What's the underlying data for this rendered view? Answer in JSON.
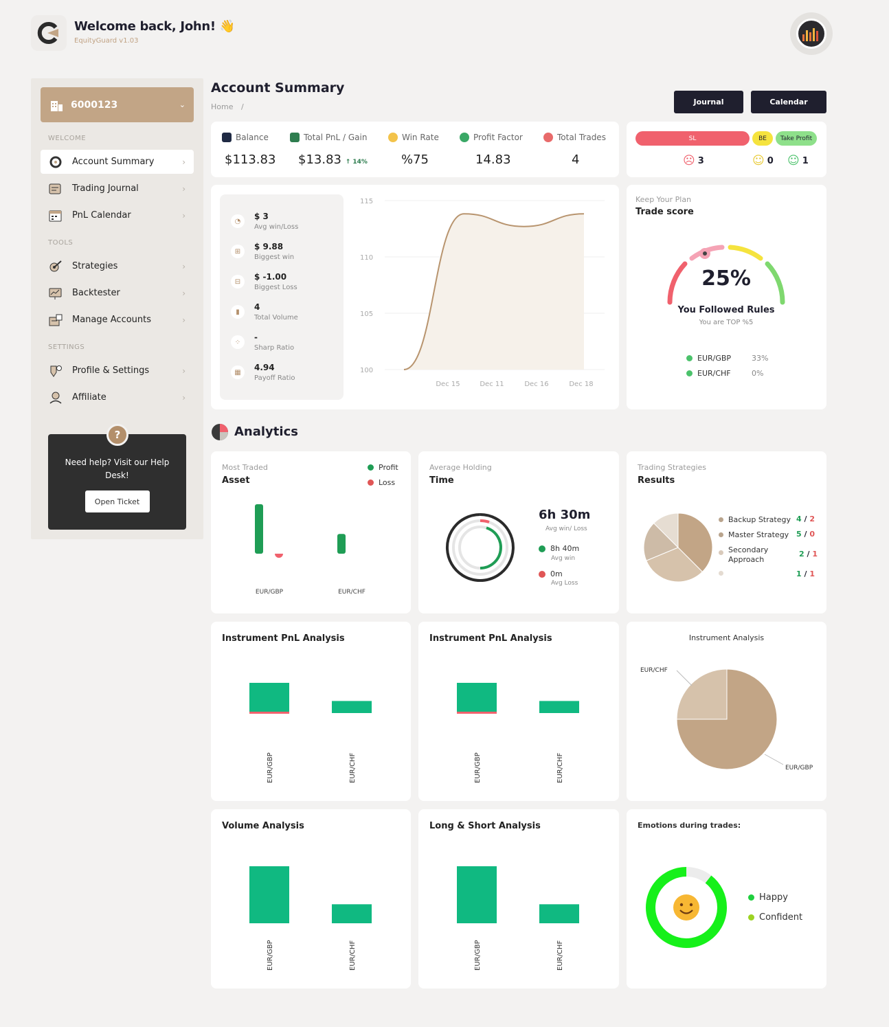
{
  "header": {
    "welcome": "Welcome back, John! 👋",
    "version": "EquityGuard v1.03"
  },
  "sidebar": {
    "account_number": "6000123",
    "sections": {
      "welcome": "WELCOME",
      "tools": "TOOLS",
      "settings": "SETTINGS"
    },
    "items": [
      {
        "label": "Account Summary",
        "icon": "account-summary-icon"
      },
      {
        "label": "Trading Journal",
        "icon": "journal-icon"
      },
      {
        "label": "PnL Calendar",
        "icon": "calendar-icon"
      },
      {
        "label": "Strategies",
        "icon": "strategy-icon"
      },
      {
        "label": "Backtester",
        "icon": "backtester-icon"
      },
      {
        "label": "Manage Accounts",
        "icon": "accounts-icon"
      },
      {
        "label": "Profile & Settings",
        "icon": "profile-icon"
      },
      {
        "label": "Affiliate",
        "icon": "affiliate-icon"
      }
    ],
    "help": {
      "text": "Need help? Visit our Help Desk!",
      "button": "Open Ticket"
    }
  },
  "page": {
    "title": "Account Summary",
    "breadcrumb": "Home",
    "breadcrumb_sep": "/",
    "journal_button": "Journal",
    "calendar_button": "Calendar"
  },
  "stats": [
    {
      "label": "Balance",
      "value": "$113.83",
      "color": "#1f2a44"
    },
    {
      "label": "Total PnL / Gain",
      "value": "$13.83",
      "badge": "↑ 14%",
      "color": "#2e7d4f"
    },
    {
      "label": "Win Rate",
      "value": "%75",
      "color": "#f3c34a"
    },
    {
      "label": "Profit Factor",
      "value": "14.83",
      "color": "#3aa866"
    },
    {
      "label": "Total Trades",
      "value": "4",
      "color": "#e86a6a"
    }
  ],
  "outcome": {
    "sl_label": "SL",
    "be_label": "BE",
    "tp_label": "Take Profit",
    "sl_count": "3",
    "be_count": "0",
    "tp_count": "1"
  },
  "mini_stats": [
    {
      "value": "$ 3",
      "label": "Avg win/Loss"
    },
    {
      "value": "$ 9.88",
      "label": "Biggest win"
    },
    {
      "value": "$ -1.00",
      "label": "Biggest Loss"
    },
    {
      "value": "4",
      "label": "Total Volume"
    },
    {
      "value": "-",
      "label": "Sharp Ratio"
    },
    {
      "value": "4.94",
      "label": "Payoff Ratio"
    }
  ],
  "trade_score": {
    "title": "Keep Your Plan",
    "subtitle": "Trade score",
    "percent": "25%",
    "headline": "You Followed Rules",
    "rank": "You are TOP %5",
    "pairs": [
      {
        "name": "EUR/GBP",
        "value": "33%"
      },
      {
        "name": "EUR/CHF",
        "value": "0%"
      }
    ]
  },
  "analytics": {
    "title": "Analytics",
    "most_traded": {
      "title": "Most Traded",
      "subtitle": "Asset",
      "legend": [
        "Profit",
        "Loss"
      ]
    },
    "holding": {
      "title": "Average Holding",
      "subtitle": "Time",
      "main": "6h 30m",
      "main_label": "Avg win/ Loss",
      "win": "8h 40m",
      "win_label": "Avg win",
      "loss": "0m",
      "loss_label": "Avg Loss"
    },
    "strategies": {
      "title": "Trading Strategies",
      "subtitle": "Results",
      "rows": [
        {
          "name": "Backup Strategy",
          "win": "4",
          "loss": "2"
        },
        {
          "name": "Master Strategy",
          "win": "5",
          "loss": "0"
        },
        {
          "name": "Secondary Approach",
          "win": "2",
          "loss": "1"
        },
        {
          "name": "",
          "win": "1",
          "loss": "1"
        }
      ]
    },
    "pnl1_title": "Instrument PnL Analysis",
    "pnl2_title": "Instrument PnL Analysis",
    "instrument_title": "Instrument Analysis",
    "volume_title": "Volume Analysis",
    "longshort_title": "Long & Short Analysis",
    "emotions": {
      "title": "Emotions during trades:",
      "legend": [
        "Happy",
        "Confident"
      ]
    }
  },
  "chart_data": [
    {
      "type": "line",
      "x": [
        "Dec 15",
        "Dec 11",
        "Dec 16",
        "Dec 18"
      ],
      "series": [
        {
          "values": [
            100,
            113.83,
            112.7,
            113.83
          ]
        }
      ],
      "ylim": [
        100,
        115
      ],
      "yticks": [
        100,
        105,
        110,
        115
      ]
    },
    {
      "type": "bar",
      "categories": [
        "EUR/GBP",
        "EUR/CHF"
      ],
      "series": [
        {
          "name": "Profit",
          "values": [
            9.88,
            3.95
          ]
        },
        {
          "name": "Loss",
          "values": [
            -1,
            0
          ]
        }
      ]
    },
    {
      "type": "bar",
      "categories": [
        "EUR/GBP",
        "EUR/CHF"
      ],
      "series": [
        {
          "values": [
            9.88,
            3.95
          ]
        },
        {
          "values": [
            -1,
            0
          ]
        }
      ]
    },
    {
      "type": "bar",
      "categories": [
        "EUR/GBP",
        "EUR/CHF"
      ],
      "series": [
        {
          "values": [
            9.88,
            3.95
          ]
        },
        {
          "values": [
            -1,
            0
          ]
        }
      ]
    },
    {
      "type": "pie",
      "labels": [
        "EUR/GBP",
        "EUR/CHF"
      ],
      "values": [
        75,
        25
      ]
    },
    {
      "type": "bar",
      "categories": [
        "EUR/GBP",
        "EUR/CHF"
      ],
      "values": [
        3,
        1
      ]
    },
    {
      "type": "bar",
      "categories": [
        "EUR/GBP",
        "EUR/CHF"
      ],
      "values": [
        3,
        1
      ]
    },
    {
      "type": "pie",
      "labels": [
        "Backup Strategy",
        "Master Strategy",
        "Secondary Approach",
        ""
      ],
      "values": [
        6,
        5,
        3,
        2
      ]
    }
  ],
  "colors": {
    "accent": "#c2a586",
    "dark": "#1f1f2e",
    "green": "#10b981",
    "loss": "#f0616d",
    "profit": "#1f9d55"
  }
}
